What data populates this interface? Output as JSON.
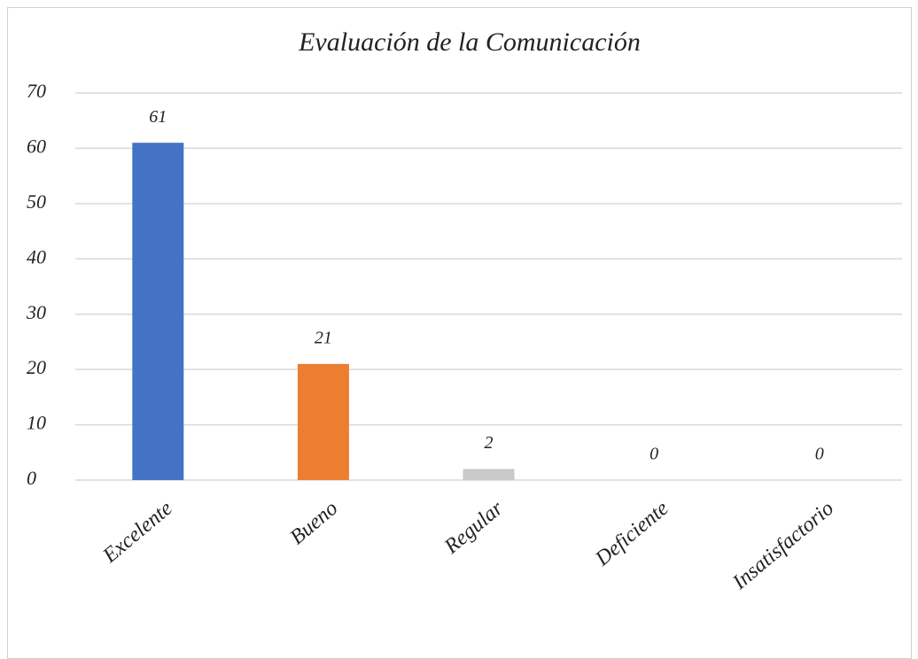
{
  "chart_data": {
    "type": "bar",
    "title": "Evaluación de la Comunicación",
    "categories": [
      "Excelente",
      "Bueno",
      "Regular",
      "Deficiente",
      "Insatisfactorio"
    ],
    "values": [
      61,
      21,
      2,
      0,
      0
    ],
    "colors": [
      "#4472c4",
      "#ed7d31",
      "#c9c9c9",
      "#ffc000",
      "#5b9bd5"
    ],
    "ylim": [
      0,
      70
    ],
    "yticks": [
      0,
      10,
      20,
      30,
      40,
      50,
      60,
      70
    ],
    "grid": true
  }
}
